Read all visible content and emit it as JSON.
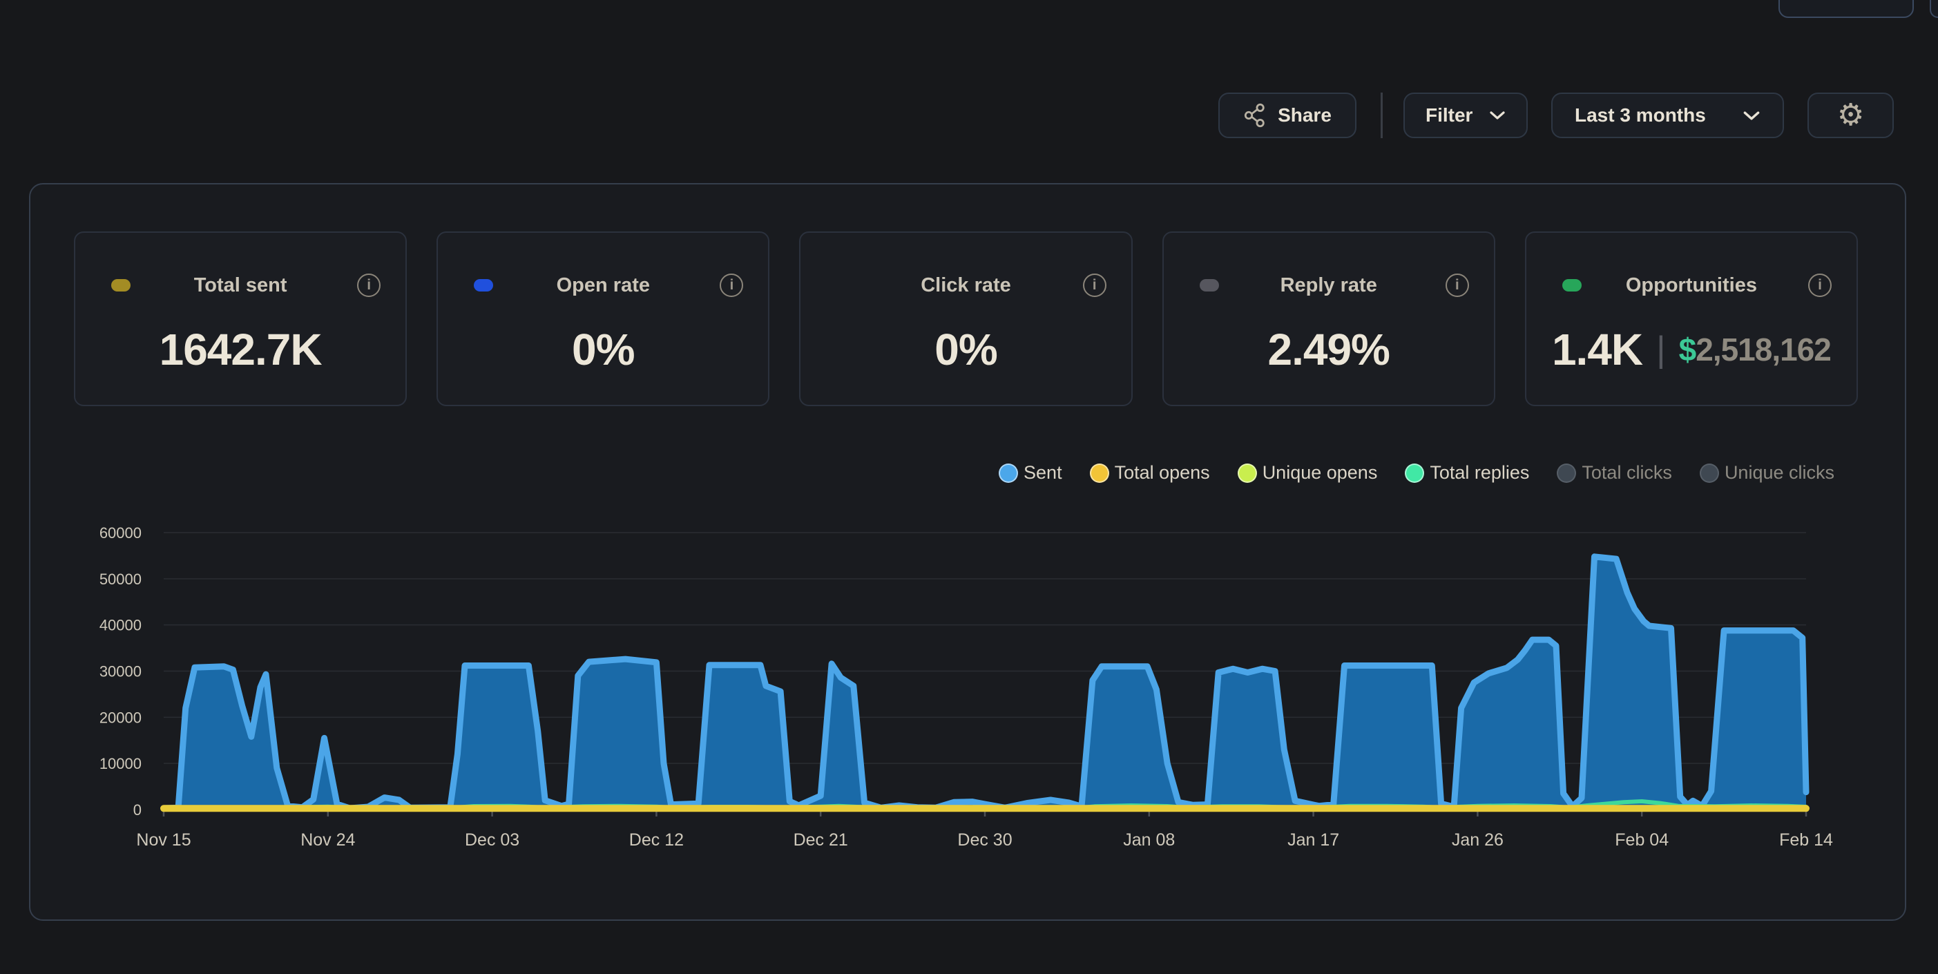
{
  "toolbar": {
    "share_label": "Share",
    "filter_label": "Filter",
    "date_range_value": "Last 3 months"
  },
  "cards": [
    {
      "label": "Total sent",
      "dot_color": "#a38c24",
      "value": "1642.7K"
    },
    {
      "label": "Open rate",
      "dot_color": "#2050dd",
      "value": "0%"
    },
    {
      "label": "Click rate",
      "dot_color": null,
      "value": "0%"
    },
    {
      "label": "Reply rate",
      "dot_color": "#56565e",
      "value": "2.49%"
    },
    {
      "label": "Opportunities",
      "dot_color": "#27a65a",
      "value": "1.4K",
      "separator": "|",
      "currency_symbol": "$",
      "currency_amount": "2,518,162",
      "currency_color": "#3cc996"
    }
  ],
  "legend": [
    {
      "label": "Sent",
      "color": "#4ba7ea",
      "active": true
    },
    {
      "label": "Total opens",
      "color": "#f2c437",
      "active": true
    },
    {
      "label": "Unique opens",
      "color": "#c9ee4e",
      "active": true
    },
    {
      "label": "Total replies",
      "color": "#41e8a5",
      "active": true
    },
    {
      "label": "Total clicks",
      "color": "#3f4852",
      "active": false
    },
    {
      "label": "Unique clicks",
      "color": "#3f4852",
      "active": false
    }
  ],
  "chart_data": {
    "type": "area",
    "title": "",
    "xlabel": "",
    "ylabel": "",
    "x_domain": [
      0,
      90
    ],
    "ylim": [
      0,
      60000
    ],
    "grid": "horizontal",
    "legend_position": "top-right",
    "y_ticks": [
      0,
      10000,
      20000,
      30000,
      40000,
      50000,
      60000
    ],
    "x_ticks": [
      {
        "label": "Nov 15",
        "day": 0
      },
      {
        "label": "Nov 24",
        "day": 9
      },
      {
        "label": "Dec 03",
        "day": 18
      },
      {
        "label": "Dec 12",
        "day": 27
      },
      {
        "label": "Dec 21",
        "day": 36
      },
      {
        "label": "Dec 30",
        "day": 45
      },
      {
        "label": "Jan 08",
        "day": 54
      },
      {
        "label": "Jan 17",
        "day": 63
      },
      {
        "label": "Jan 26",
        "day": 72
      },
      {
        "label": "Feb 04",
        "day": 81
      },
      {
        "label": "Feb 14",
        "day": 90
      }
    ],
    "series": [
      {
        "name": "Sent",
        "color": "#4ba5e8",
        "fill": "#1a6aa8",
        "width": 9,
        "draw_order": 1,
        "active": true,
        "points": [
          [
            0,
            300
          ],
          [
            0.8,
            400
          ],
          [
            1.2,
            22000
          ],
          [
            1.7,
            30800
          ],
          [
            3.3,
            31000
          ],
          [
            3.8,
            30300
          ],
          [
            4.3,
            22500
          ],
          [
            4.8,
            15800
          ],
          [
            5.3,
            26500
          ],
          [
            5.6,
            29300
          ],
          [
            6.2,
            9000
          ],
          [
            6.8,
            800
          ],
          [
            7.6,
            500
          ],
          [
            8.2,
            2200
          ],
          [
            8.8,
            15500
          ],
          [
            9.5,
            1200
          ],
          [
            10.2,
            300
          ],
          [
            11.2,
            600
          ],
          [
            12.1,
            2600
          ],
          [
            12.9,
            2100
          ],
          [
            13.5,
            400
          ],
          [
            15.7,
            500
          ],
          [
            16.1,
            12000
          ],
          [
            16.5,
            31200
          ],
          [
            20.0,
            31200
          ],
          [
            20.5,
            17000
          ],
          [
            20.9,
            2000
          ],
          [
            21.8,
            800
          ],
          [
            22.2,
            1200
          ],
          [
            22.7,
            29000
          ],
          [
            23.3,
            32000
          ],
          [
            25.3,
            32600
          ],
          [
            27.0,
            31900
          ],
          [
            27.4,
            10000
          ],
          [
            27.8,
            1100
          ],
          [
            29.3,
            1300
          ],
          [
            29.9,
            31300
          ],
          [
            32.7,
            31300
          ],
          [
            33.0,
            26800
          ],
          [
            33.8,
            25600
          ],
          [
            34.3,
            1800
          ],
          [
            34.8,
            900
          ],
          [
            36.0,
            3000
          ],
          [
            36.6,
            31600
          ],
          [
            37.1,
            28600
          ],
          [
            37.8,
            26800
          ],
          [
            38.4,
            1500
          ],
          [
            39.3,
            400
          ],
          [
            40.3,
            900
          ],
          [
            41.3,
            500
          ],
          [
            42.3,
            400
          ],
          [
            43.3,
            1600
          ],
          [
            44.3,
            1700
          ],
          [
            45.1,
            1100
          ],
          [
            46.1,
            400
          ],
          [
            47.3,
            1400
          ],
          [
            48.6,
            2100
          ],
          [
            49.6,
            1500
          ],
          [
            50.3,
            700
          ],
          [
            50.9,
            28000
          ],
          [
            51.4,
            31000
          ],
          [
            53.9,
            31000
          ],
          [
            54.4,
            26000
          ],
          [
            55.0,
            10000
          ],
          [
            55.6,
            1600
          ],
          [
            56.4,
            1000
          ],
          [
            57.2,
            1100
          ],
          [
            57.8,
            29700
          ],
          [
            58.6,
            30500
          ],
          [
            59.4,
            29700
          ],
          [
            60.2,
            30500
          ],
          [
            60.9,
            30000
          ],
          [
            61.4,
            13000
          ],
          [
            62.0,
            1900
          ],
          [
            63.3,
            800
          ],
          [
            64.1,
            1100
          ],
          [
            64.7,
            31200
          ],
          [
            69.5,
            31200
          ],
          [
            70.0,
            1300
          ],
          [
            70.7,
            600
          ],
          [
            71.1,
            22000
          ],
          [
            71.8,
            27500
          ],
          [
            72.6,
            29500
          ],
          [
            73.6,
            30700
          ],
          [
            74.2,
            32500
          ],
          [
            74.6,
            34500
          ],
          [
            75.0,
            36800
          ],
          [
            75.9,
            36800
          ],
          [
            76.3,
            35500
          ],
          [
            76.7,
            3500
          ],
          [
            77.2,
            700
          ],
          [
            77.7,
            2500
          ],
          [
            78.4,
            54800
          ],
          [
            79.6,
            54300
          ],
          [
            80.2,
            47000
          ],
          [
            80.6,
            43500
          ],
          [
            81.1,
            40800
          ],
          [
            81.4,
            39800
          ],
          [
            82.6,
            39300
          ],
          [
            83.1,
            2800
          ],
          [
            83.5,
            1000
          ],
          [
            83.8,
            1900
          ],
          [
            84.3,
            800
          ],
          [
            84.8,
            4000
          ],
          [
            85.5,
            38800
          ],
          [
            89.3,
            38800
          ],
          [
            89.8,
            37200
          ],
          [
            90,
            3800
          ]
        ]
      },
      {
        "name": "Unique opens",
        "color": "#c9ee4e",
        "width": 5,
        "draw_order": 2,
        "active": true,
        "points": [
          [
            0,
            140
          ],
          [
            90,
            140
          ]
        ]
      },
      {
        "name": "Total replies",
        "color": "#3ed89a",
        "width": 6,
        "draw_order": 3,
        "active": true,
        "points": [
          [
            0,
            200
          ],
          [
            1,
            400
          ],
          [
            3,
            500
          ],
          [
            5,
            450
          ],
          [
            7,
            300
          ],
          [
            8,
            550
          ],
          [
            9,
            650
          ],
          [
            10,
            400
          ],
          [
            12,
            400
          ],
          [
            14,
            250
          ],
          [
            16,
            450
          ],
          [
            17,
            750
          ],
          [
            19,
            800
          ],
          [
            20,
            650
          ],
          [
            21,
            400
          ],
          [
            23,
            700
          ],
          [
            25,
            800
          ],
          [
            27,
            650
          ],
          [
            28,
            400
          ],
          [
            30,
            600
          ],
          [
            32,
            600
          ],
          [
            34,
            450
          ],
          [
            36,
            650
          ],
          [
            37,
            800
          ],
          [
            38,
            600
          ],
          [
            40,
            300
          ],
          [
            43,
            350
          ],
          [
            45,
            300
          ],
          [
            48,
            350
          ],
          [
            50,
            300
          ],
          [
            51,
            700
          ],
          [
            53,
            900
          ],
          [
            55,
            750
          ],
          [
            56,
            450
          ],
          [
            58,
            700
          ],
          [
            60,
            700
          ],
          [
            61,
            550
          ],
          [
            63,
            400
          ],
          [
            65,
            800
          ],
          [
            67,
            800
          ],
          [
            69,
            650
          ],
          [
            70,
            450
          ],
          [
            72,
            800
          ],
          [
            74,
            900
          ],
          [
            76,
            750
          ],
          [
            77,
            450
          ],
          [
            78,
            900
          ],
          [
            80,
            1600
          ],
          [
            81,
            1800
          ],
          [
            82,
            1400
          ],
          [
            83,
            800
          ],
          [
            85,
            700
          ],
          [
            87,
            900
          ],
          [
            89,
            800
          ],
          [
            90,
            600
          ]
        ]
      },
      {
        "name": "Total opens",
        "color": "#e8cc3a",
        "width": 10,
        "draw_order": 4,
        "active": true,
        "points": [
          [
            0,
            260
          ],
          [
            90,
            260
          ]
        ]
      },
      {
        "name": "Total clicks",
        "color": "#3f4852",
        "width": 6,
        "draw_order": 5,
        "active": false,
        "points": []
      },
      {
        "name": "Unique clicks",
        "color": "#3f4852",
        "width": 6,
        "draw_order": 6,
        "active": false,
        "points": []
      }
    ]
  }
}
